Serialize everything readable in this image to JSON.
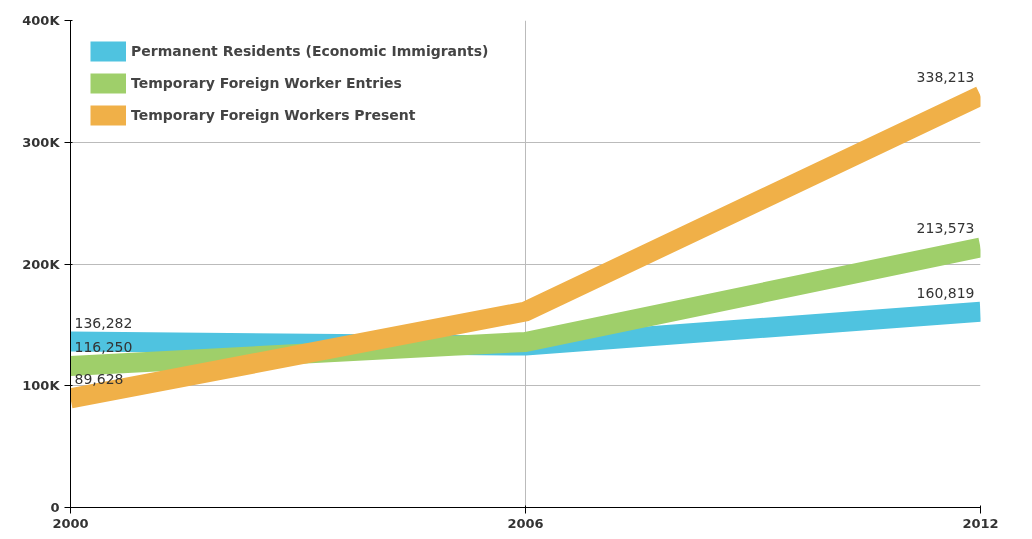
{
  "chart_data": {
    "type": "line",
    "x": [
      2000,
      2006,
      2012
    ],
    "series": [
      {
        "name": "Permanent Residents (Economic Immigrants)",
        "color": "#4fc3e0",
        "values": [
          136282,
          133000,
          160819
        ],
        "value_labels": [
          "136,282",
          null,
          "160,819"
        ]
      },
      {
        "name": "Temporary Foreign Worker Entries",
        "color": "#9fcf6a",
        "values": [
          116250,
          136000,
          213573
        ],
        "value_labels": [
          "116,250",
          null,
          "213,573"
        ]
      },
      {
        "name": "Temporary Foreign Workers Present",
        "color": "#f0b048",
        "values": [
          89628,
          161000,
          338213
        ],
        "value_labels": [
          "89,628",
          null,
          "338,213"
        ]
      }
    ],
    "xlim": [
      2000,
      2012
    ],
    "xticks": [
      2000,
      2006,
      2012
    ],
    "ylim": [
      0,
      400000
    ],
    "yticks": [
      {
        "value": 0,
        "label": "0"
      },
      {
        "value": 100000,
        "label": "100K"
      },
      {
        "value": 200000,
        "label": "200K"
      },
      {
        "value": 300000,
        "label": "300K"
      },
      {
        "value": 400000,
        "label": "400K"
      }
    ],
    "grid": true,
    "legend": "top left",
    "marker": "none",
    "line_style": "solid"
  }
}
